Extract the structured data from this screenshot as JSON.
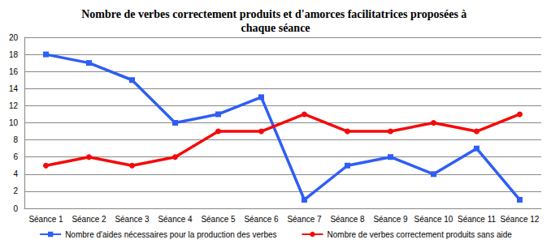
{
  "chart_data": {
    "type": "line",
    "title": "Nombre de verbes correctement produits et d'amorces facilitatrices proposées à chaque séance",
    "categories": [
      "Séance 1",
      "Séance 2",
      "Séance 3",
      "Séance 4",
      "Séance 5",
      "Séance 6",
      "Séance 7",
      "Séance 8",
      "Séance 9",
      "Séance 10",
      "Séance 11",
      "Séance 12"
    ],
    "series": [
      {
        "name": "Nombre d'aides nécessaires pour la production des verbes",
        "color": "#2f5ef5",
        "marker": "square",
        "values": [
          18,
          17,
          15,
          10,
          11,
          13,
          1,
          5,
          6,
          4,
          7,
          1
        ]
      },
      {
        "name": "Nombre de verbes correctement produits sans aide",
        "color": "#f50a0a",
        "marker": "circle",
        "values": [
          5,
          6,
          5,
          6,
          9,
          9,
          11,
          9,
          9,
          10,
          9,
          11
        ]
      }
    ],
    "ylim": [
      0,
      20
    ],
    "yticks": [
      0,
      2,
      4,
      6,
      8,
      10,
      12,
      14,
      16,
      18,
      20
    ],
    "grid": true,
    "legend": "bottom"
  }
}
